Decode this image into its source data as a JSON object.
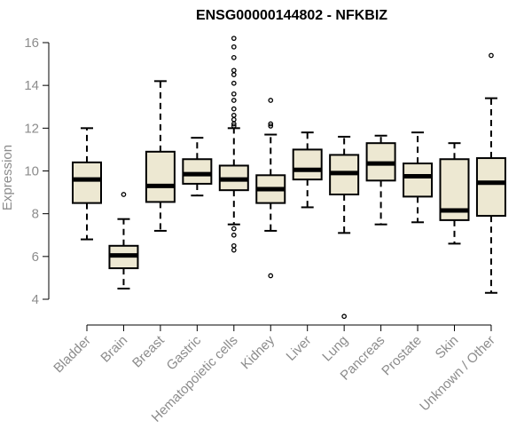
{
  "chart_data": {
    "type": "boxplot",
    "title": "ENSG00000144802 - NFKBIZ",
    "xlabel": "",
    "ylabel": "Expression",
    "ylim": [
      3.3,
      16.2
    ],
    "yticks": [
      4,
      6,
      8,
      10,
      12,
      14,
      16
    ],
    "grid": false,
    "legend": "none",
    "box_fill": "#ede8d2",
    "line_color": "#000000",
    "categories": [
      "Bladder",
      "Brain",
      "Breast",
      "Gastric",
      "Hematopoietic cells",
      "Kidney",
      "Liver",
      "Lung",
      "Pancreas",
      "Prostate",
      "Skin",
      "Unknown / Other"
    ],
    "boxes": [
      {
        "category": "Bladder",
        "whisker_low": 6.8,
        "q1": 8.5,
        "median": 9.6,
        "q3": 10.4,
        "whisker_high": 12.0,
        "outliers": []
      },
      {
        "category": "Brain",
        "whisker_low": 4.5,
        "q1": 5.45,
        "median": 6.05,
        "q3": 6.5,
        "whisker_high": 7.75,
        "outliers": [
          8.9
        ]
      },
      {
        "category": "Breast",
        "whisker_low": 7.2,
        "q1": 8.55,
        "median": 9.3,
        "q3": 10.9,
        "whisker_high": 14.2,
        "outliers": []
      },
      {
        "category": "Gastric",
        "whisker_low": 8.85,
        "q1": 9.4,
        "median": 9.85,
        "q3": 10.55,
        "whisker_high": 11.55,
        "outliers": []
      },
      {
        "category": "Hematopoietic cells",
        "whisker_low": 7.5,
        "q1": 9.1,
        "median": 9.6,
        "q3": 10.25,
        "whisker_high": 12.0,
        "outliers": [
          16.2,
          15.8,
          15.3,
          14.7,
          14.5,
          14.1,
          13.6,
          13.3,
          12.9,
          12.6,
          12.4,
          12.2,
          12.1,
          7.3,
          7.0,
          6.5,
          6.3
        ]
      },
      {
        "category": "Kidney",
        "whisker_low": 7.2,
        "q1": 8.5,
        "median": 9.15,
        "q3": 9.8,
        "whisker_high": 11.7,
        "outliers": [
          13.3,
          12.2,
          12.1,
          5.1
        ]
      },
      {
        "category": "Liver",
        "whisker_low": 8.3,
        "q1": 9.6,
        "median": 10.05,
        "q3": 11.0,
        "whisker_high": 11.8,
        "outliers": []
      },
      {
        "category": "Lung",
        "whisker_low": 7.1,
        "q1": 8.9,
        "median": 9.9,
        "q3": 10.75,
        "whisker_high": 11.6,
        "outliers": [
          3.2
        ]
      },
      {
        "category": "Pancreas",
        "whisker_low": 7.5,
        "q1": 9.55,
        "median": 10.35,
        "q3": 11.3,
        "whisker_high": 11.65,
        "outliers": []
      },
      {
        "category": "Prostate",
        "whisker_low": 7.6,
        "q1": 8.8,
        "median": 9.75,
        "q3": 10.35,
        "whisker_high": 11.8,
        "outliers": []
      },
      {
        "category": "Skin",
        "whisker_low": 6.6,
        "q1": 7.7,
        "median": 8.15,
        "q3": 10.55,
        "whisker_high": 11.3,
        "outliers": []
      },
      {
        "category": "Unknown / Other",
        "whisker_low": 4.3,
        "q1": 7.9,
        "median": 9.45,
        "q3": 10.6,
        "whisker_high": 13.4,
        "outliers": [
          15.4
        ]
      }
    ]
  }
}
